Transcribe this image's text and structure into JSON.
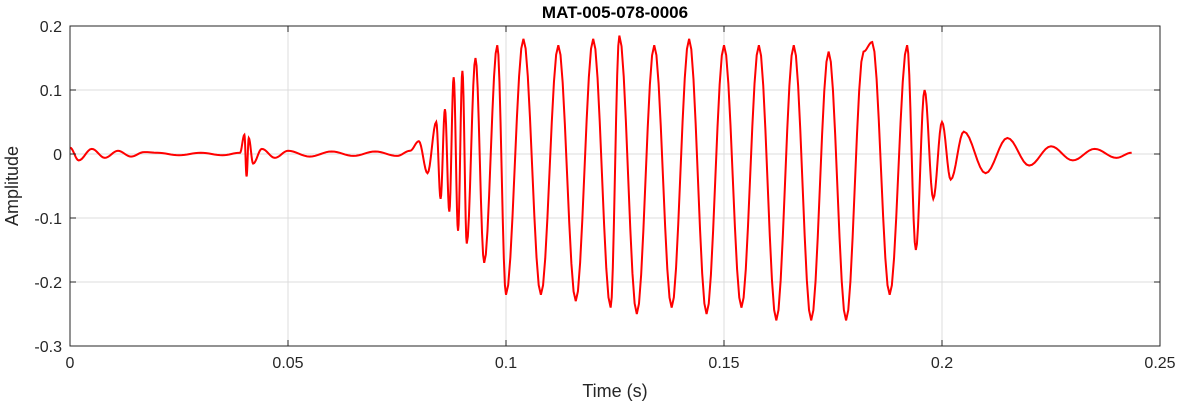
{
  "chart_data": {
    "type": "line",
    "title": "MAT-005-078-0006",
    "xlabel": "Time (s)",
    "ylabel": "Amplitude",
    "xlim": [
      0,
      0.25
    ],
    "ylim": [
      -0.3,
      0.2
    ],
    "xticks": [
      0,
      0.05,
      0.1,
      0.15,
      0.2,
      0.25
    ],
    "xtick_labels": [
      "0",
      "0.05",
      "0.1",
      "0.15",
      "0.2",
      "0.25"
    ],
    "yticks": [
      -0.3,
      -0.2,
      -0.1,
      0,
      0.1,
      0.2
    ],
    "ytick_labels": [
      "-0.3",
      "-0.2",
      "-0.1",
      "0",
      "0.1",
      "0.2"
    ],
    "grid": true,
    "color": "#ff0000",
    "series": [
      {
        "x": [
          0,
          0.002,
          0.005,
          0.008,
          0.011,
          0.014,
          0.017,
          0.02,
          0.025,
          0.03,
          0.035,
          0.039,
          0.04,
          0.0405,
          0.041,
          0.042,
          0.044,
          0.047,
          0.05,
          0.055,
          0.06,
          0.065,
          0.07,
          0.075,
          0.078,
          0.08,
          0.082,
          0.084,
          0.085,
          0.086,
          0.087,
          0.088,
          0.089,
          0.09,
          0.091,
          0.093,
          0.095,
          0.098,
          0.1,
          0.104,
          0.108,
          0.112,
          0.116,
          0.12,
          0.124,
          0.126,
          0.13,
          0.134,
          0.138,
          0.142,
          0.146,
          0.15,
          0.154,
          0.158,
          0.162,
          0.166,
          0.17,
          0.174,
          0.178,
          0.182,
          0.184,
          0.188,
          0.192,
          0.194,
          0.196,
          0.198,
          0.2,
          0.202,
          0.205,
          0.21,
          0.215,
          0.22,
          0.225,
          0.23,
          0.235,
          0.24,
          0.2435
        ],
        "y": [
          0.01,
          -0.01,
          0.008,
          -0.006,
          0.005,
          -0.004,
          0.003,
          0.002,
          -0.002,
          0.002,
          -0.002,
          0.002,
          0.03,
          -0.035,
          0.025,
          -0.015,
          0.008,
          -0.006,
          0.005,
          -0.004,
          0.004,
          -0.003,
          0.004,
          -0.003,
          0.005,
          0.02,
          -0.03,
          0.05,
          -0.07,
          0.07,
          -0.09,
          0.12,
          -0.12,
          0.13,
          -0.14,
          0.15,
          -0.17,
          0.17,
          -0.22,
          0.18,
          -0.22,
          0.17,
          -0.23,
          0.18,
          -0.24,
          0.185,
          -0.25,
          0.17,
          -0.24,
          0.18,
          -0.25,
          0.17,
          -0.24,
          0.17,
          -0.26,
          0.17,
          -0.26,
          0.16,
          -0.26,
          0.16,
          0.175,
          -0.22,
          0.17,
          -0.15,
          0.1,
          -0.07,
          0.05,
          -0.04,
          0.035,
          -0.03,
          0.025,
          -0.018,
          0.012,
          -0.01,
          0.008,
          -0.006,
          0.002
        ]
      }
    ]
  }
}
